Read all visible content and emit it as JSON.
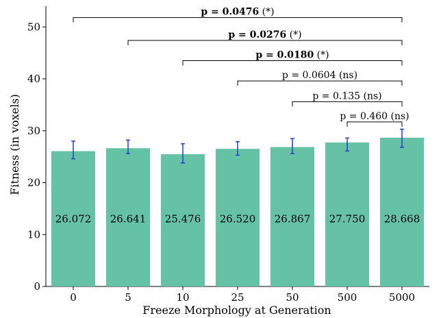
{
  "chart_data": {
    "type": "bar",
    "title": "",
    "xlabel": "Freeze Morphology at Generation",
    "ylabel": "Fitness (in voxels)",
    "categories": [
      "0",
      "5",
      "10",
      "25",
      "50",
      "500",
      "5000"
    ],
    "values": [
      26.072,
      26.641,
      25.476,
      26.52,
      26.867,
      27.75,
      28.668
    ],
    "value_labels": [
      "26.072",
      "26.641",
      "25.476",
      "26.520",
      "26.867",
      "27.750",
      "28.668"
    ],
    "error_bars": [
      {
        "low": 24.6,
        "high": 28.0
      },
      {
        "low": 25.6,
        "high": 28.2
      },
      {
        "low": 23.8,
        "high": 27.5
      },
      {
        "low": 25.3,
        "high": 27.9
      },
      {
        "low": 25.6,
        "high": 28.5
      },
      {
        "low": 26.1,
        "high": 28.6
      },
      {
        "low": 26.8,
        "high": 30.3
      }
    ],
    "ylim": [
      0,
      54
    ],
    "yticks": [
      0,
      10,
      20,
      30,
      40,
      50
    ],
    "grid": false,
    "colors": {
      "bar": "#66c2a5",
      "error_bar": "#1f3fd1",
      "bracket": "#000000"
    },
    "comparisons": [
      {
        "from": "0",
        "to": "5000",
        "value": "0.0476",
        "sig": "(*)",
        "significant": true,
        "y": 51.8
      },
      {
        "from": "5",
        "to": "5000",
        "value": "0.0276",
        "sig": "(*)",
        "significant": true,
        "y": 47.4
      },
      {
        "from": "10",
        "to": "5000",
        "value": "0.0180",
        "sig": "(*)",
        "significant": true,
        "y": 43.5
      },
      {
        "from": "25",
        "to": "5000",
        "value": "0.0604",
        "sig": "(ns)",
        "significant": false,
        "y": 39.6
      },
      {
        "from": "50",
        "to": "5000",
        "value": "0.135",
        "sig": "(ns)",
        "significant": false,
        "y": 35.6
      },
      {
        "from": "500",
        "to": "5000",
        "value": "0.460",
        "sig": "(ns)",
        "significant": false,
        "y": 31.7
      }
    ]
  }
}
